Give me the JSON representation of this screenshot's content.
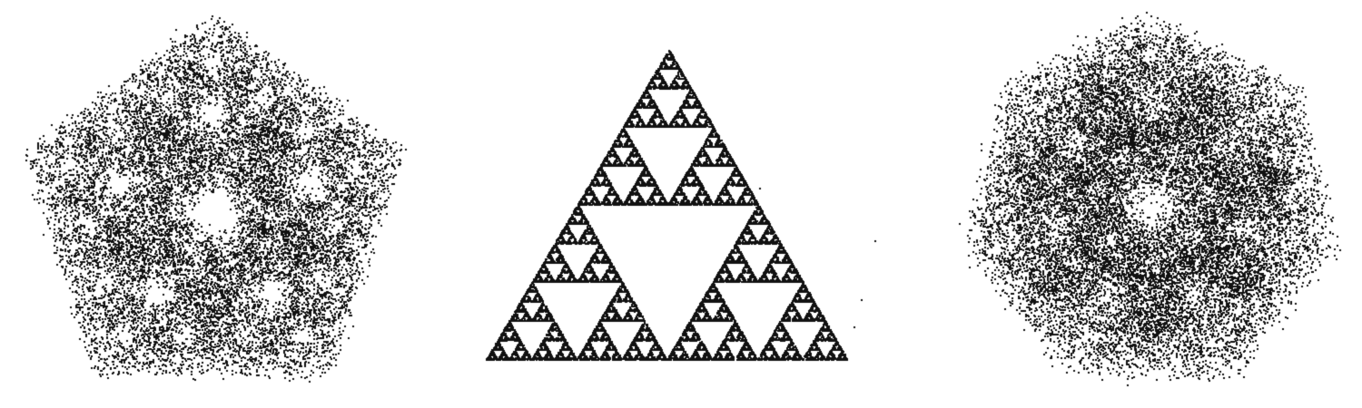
{
  "figure": {
    "panels": [
      {
        "id": "pentagon",
        "shape": "chaos-game-pentagon",
        "vertices": 5,
        "jump_ratio": 0.5,
        "color": "#111111"
      },
      {
        "id": "triangle",
        "shape": "sierpinski-triangle",
        "vertices": 3,
        "jump_ratio": 0.5,
        "color": "#111111"
      },
      {
        "id": "heptagon",
        "shape": "chaos-game-heptagon",
        "vertices": 7,
        "jump_ratio": 0.5,
        "color": "#111111"
      }
    ],
    "background": "#ffffff"
  }
}
